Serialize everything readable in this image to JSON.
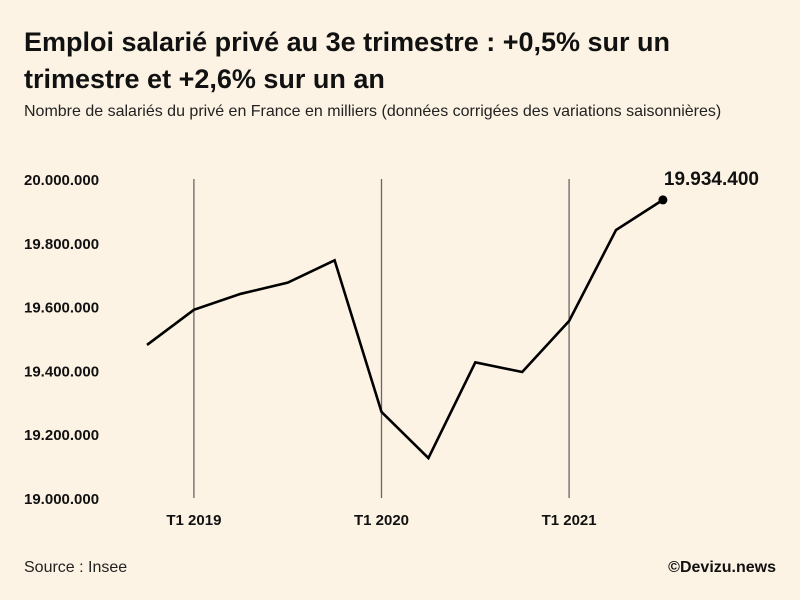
{
  "title": "Emploi salarié privé au 3e trimestre : +0,5% sur un trimestre et +2,6% sur un an",
  "subtitle": "Nombre de salariés du privé en France en milliers (données corrigées des variations saisonnières)",
  "source": "Source : Insee",
  "brand": "©Devizu.news",
  "colors": {
    "background": "#fcf3e4",
    "line": "#000000",
    "grid": "#666666"
  },
  "chart_data": {
    "type": "line",
    "title": "Emploi salarié privé au 3e trimestre : +0,5% sur un trimestre et +2,6% sur un an",
    "xlabel": "",
    "ylabel": "",
    "categories": [
      "T4 2018",
      "T1 2019",
      "T2 2019",
      "T3 2019",
      "T4 2019",
      "T1 2020",
      "T2 2020",
      "T3 2020",
      "T4 2020",
      "T1 2021",
      "T2 2021",
      "T3 2021"
    ],
    "values": [
      19480000,
      19590000,
      19640000,
      19675000,
      19745000,
      19270000,
      19125000,
      19425000,
      19395000,
      19555000,
      19840000,
      19934400
    ],
    "ylim": [
      19000000,
      20000000
    ],
    "yticks": [
      {
        "value": 20000000,
        "label": "20.000.000"
      },
      {
        "value": 19800000,
        "label": "19.800.000"
      },
      {
        "value": 19600000,
        "label": "19.600.000"
      },
      {
        "value": 19400000,
        "label": "19.400.000"
      },
      {
        "value": 19200000,
        "label": "19.200.000"
      },
      {
        "value": 19000000,
        "label": "19.000.000"
      }
    ],
    "xticks": [
      {
        "category": "T1 2019",
        "label": "T1 2019"
      },
      {
        "category": "T1 2020",
        "label": "T1 2020"
      },
      {
        "category": "T1 2021",
        "label": "T1 2021"
      }
    ],
    "annotation": {
      "category": "T3 2021",
      "label": "19.934.400"
    },
    "grid": "vertical lines at T1 of each year",
    "legend": "none"
  }
}
